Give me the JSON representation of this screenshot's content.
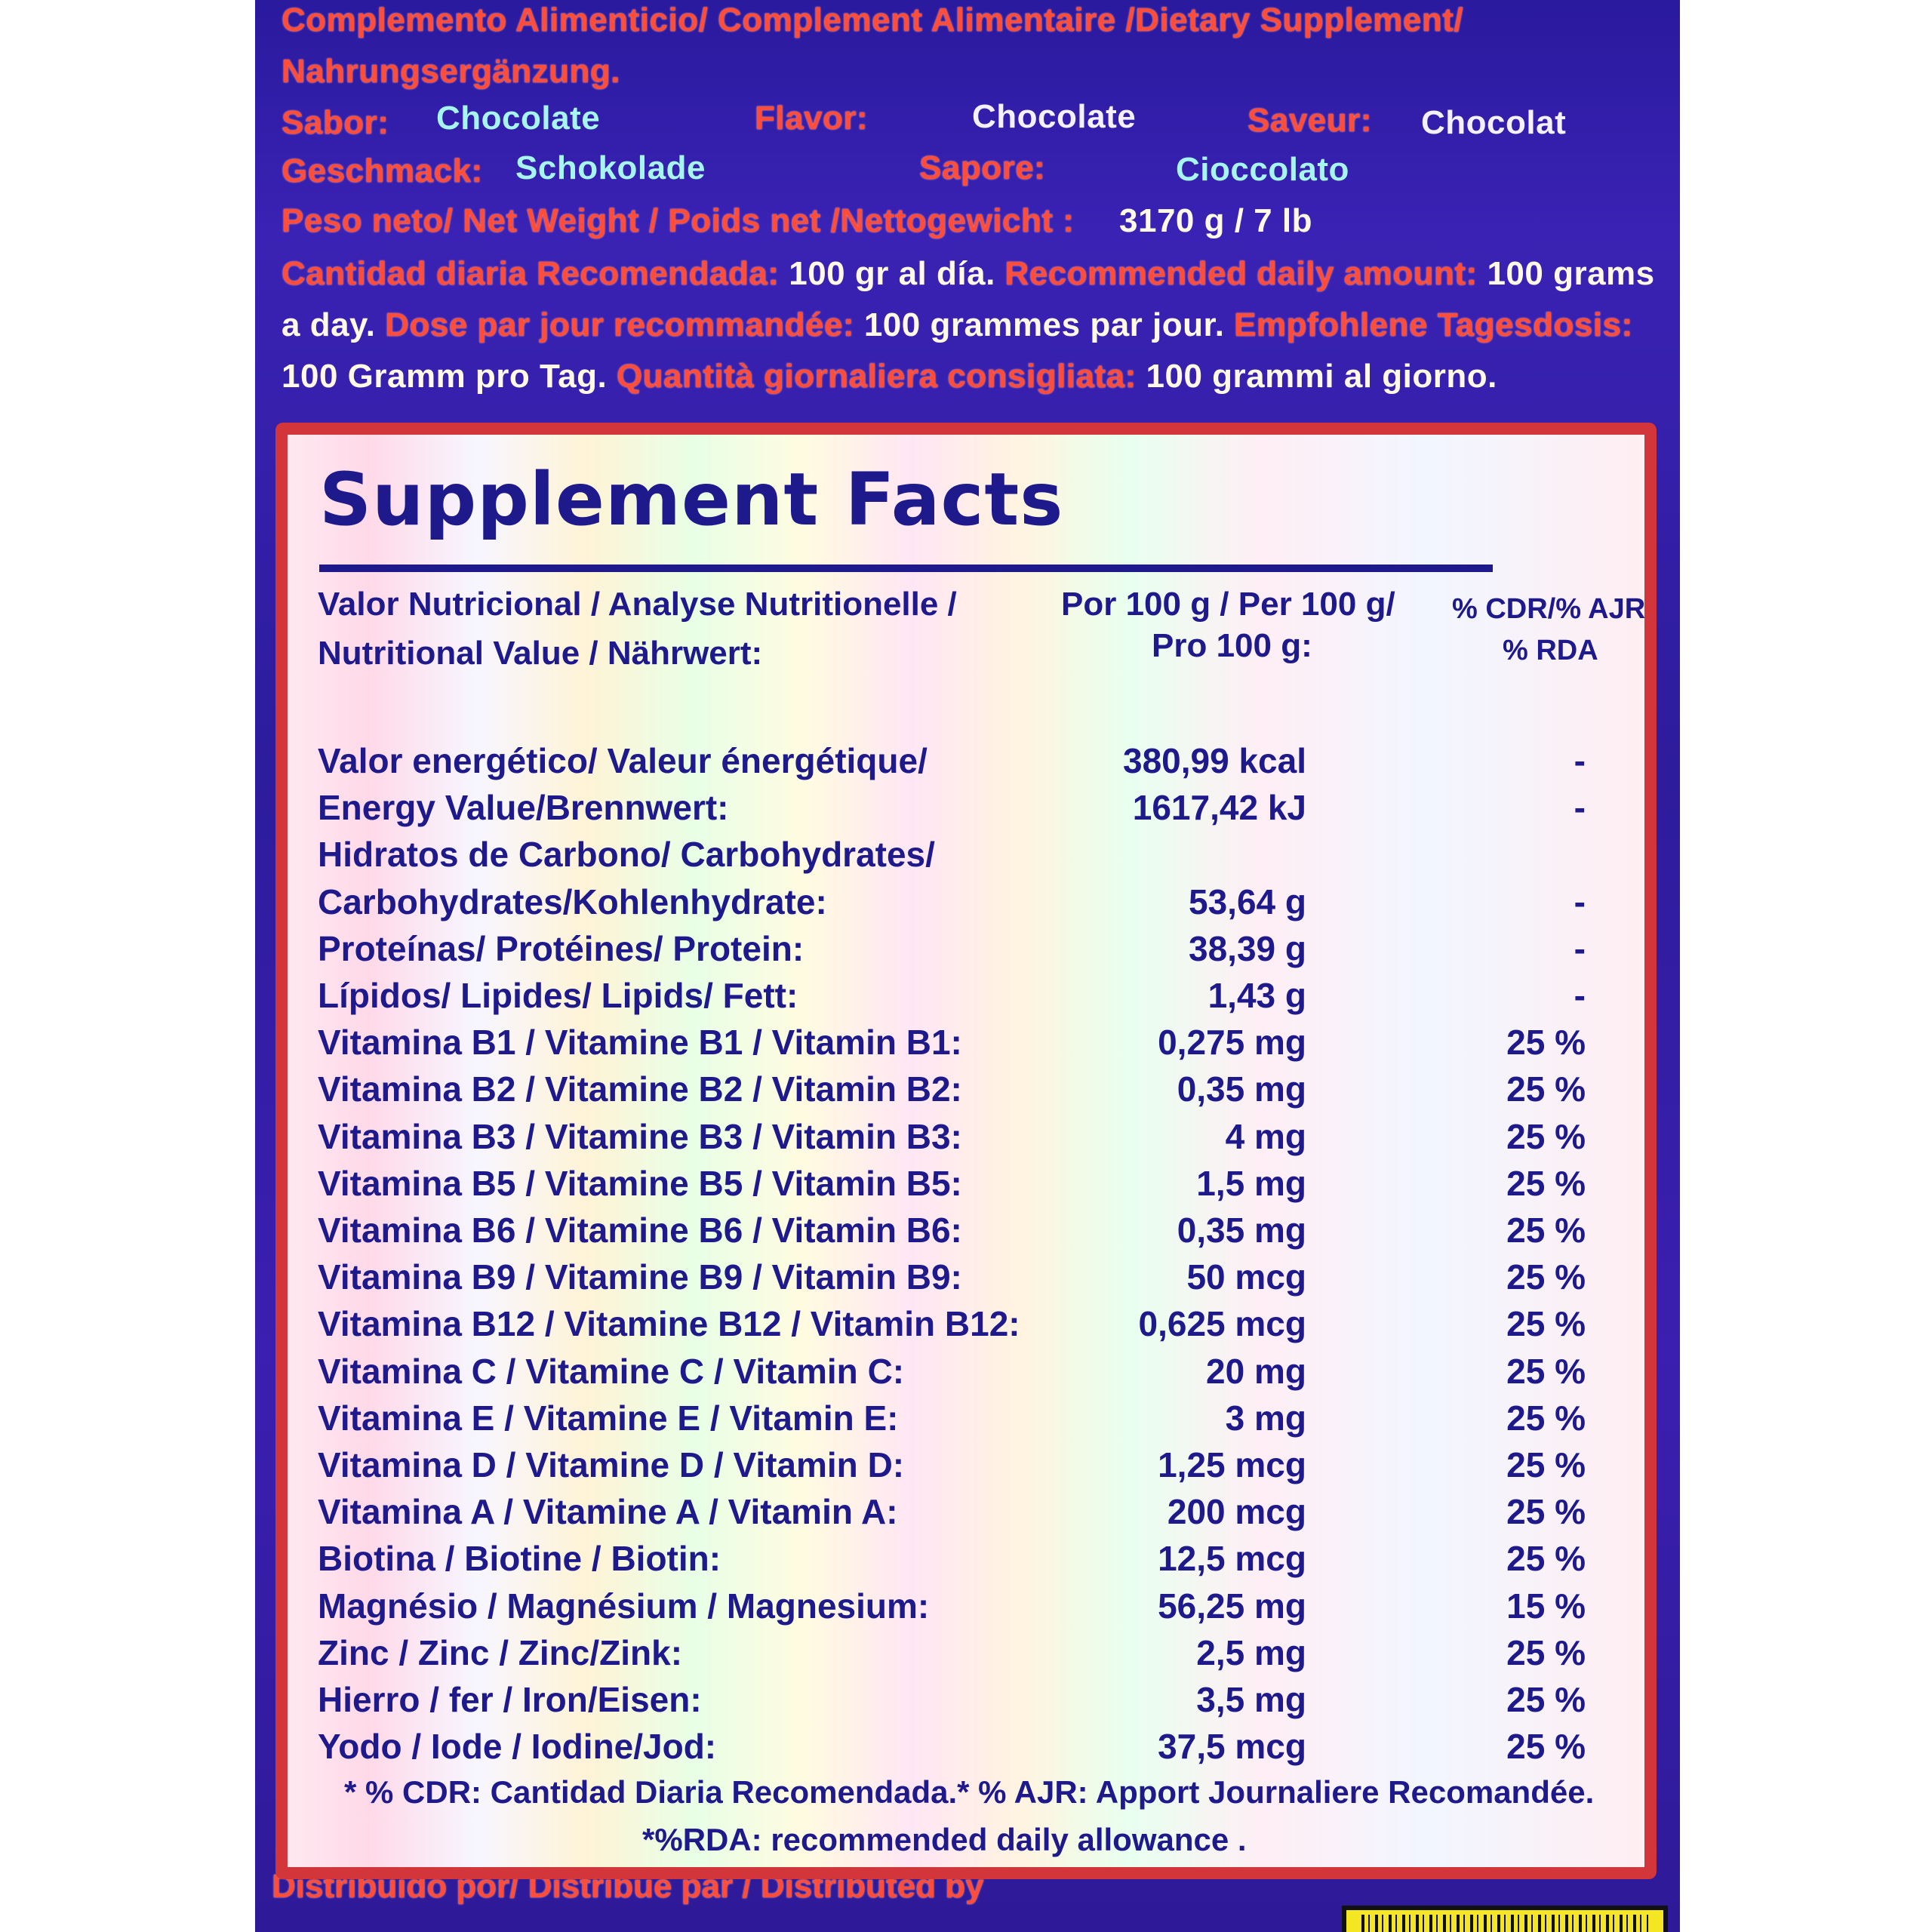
{
  "header": {
    "line1": "Complemento Alimenticio/ Complement  Alimentaire /Dietary Supplement/",
    "line2": "Nahrungsergänzung.",
    "flavors": {
      "sabor_label": "Sabor:",
      "sabor_value": "Chocolate",
      "flavor_label": "Flavor:",
      "flavor_value": "Chocolate",
      "saveur_label": "Saveur:",
      "saveur_value": "Chocolat",
      "geschmack_label": "Geschmack:",
      "geschmack_value": "Schokolade",
      "sapore_label": "Sapore:",
      "sapore_value": "Cioccolato"
    },
    "net_weight_label": "Peso neto/  Net Weight / Poids net /Nettogewicht :",
    "net_weight_value": "3170 g / 7 lb",
    "daily": {
      "es_label": "Cantidad diaria Recomendada:",
      "es_value": "100 gr al día.",
      "en_label": "Recommended daily amount:",
      "en_value_a": "100 grams",
      "en_value_b": "a day.",
      "fr_label": "Dose par jour recommandée:",
      "fr_value": "100 grammes par jour.",
      "de_label": "Empfohlene Tagesdosis:",
      "de_value": "100 Gramm pro Tag.",
      "it_label": "Quantità giornaliera consigliata:",
      "it_value": "100 grammi al giorno."
    }
  },
  "facts": {
    "title": "Supplement Facts",
    "col_label_1": "Valor Nutricional / Analyse Nutritionelle /",
    "col_label_2": "Nutritional Value / Nährwert:",
    "col_amount_1": "Por 100 g / Per 100 g/",
    "col_amount_2": "Pro 100 g:",
    "col_pct_1": "% CDR/% AJR",
    "col_pct_2": "% RDA",
    "rows": [
      {
        "label": "Valor energético/ Valeur énergétique/",
        "amount": "380,99 kcal",
        "pct": "-"
      },
      {
        "label": "Energy Value/Brennwert:",
        "amount": "1617,42 kJ",
        "pct": "-"
      },
      {
        "label": "Hidratos de Carbono/ Carbohydrates/",
        "amount": "",
        "pct": ""
      },
      {
        "label": "Carbohydrates/Kohlenhydrate:",
        "amount": "53,64 g",
        "pct": "-"
      },
      {
        "label": "Proteínas/ Protéines/ Protein:",
        "amount": "38,39 g",
        "pct": "-"
      },
      {
        "label": "Lípidos/ Lipides/ Lipids/ Fett:",
        "amount": "1,43 g",
        "pct": "-"
      },
      {
        "label": "Vitamina B1 / Vitamine B1 / Vitamin B1:",
        "amount": "0,275 mg",
        "pct": "25 %"
      },
      {
        "label": "Vitamina B2 / Vitamine B2 / Vitamin B2:",
        "amount": "0,35 mg",
        "pct": "25 %"
      },
      {
        "label": "Vitamina B3 / Vitamine B3 / Vitamin B3:",
        "amount": "4 mg",
        "pct": "25 %"
      },
      {
        "label": "Vitamina B5 / Vitamine B5 / Vitamin B5:",
        "amount": "1,5 mg",
        "pct": "25 %"
      },
      {
        "label": "Vitamina B6 / Vitamine B6 / Vitamin B6:",
        "amount": "0,35 mg",
        "pct": "25 %"
      },
      {
        "label": "Vitamina B9 / Vitamine B9 / Vitamin B9:",
        "amount": "50 mcg",
        "pct": "25 %"
      },
      {
        "label": "Vitamina B12 / Vitamine B12 / Vitamin B12:",
        "amount": "0,625 mcg",
        "pct": "25 %"
      },
      {
        "label": "Vitamina C / Vitamine C / Vitamin C:",
        "amount": "20 mg",
        "pct": "25 %"
      },
      {
        "label": "Vitamina E / Vitamine E / Vitamin E:",
        "amount": "3 mg",
        "pct": "25 %"
      },
      {
        "label": "Vitamina D / Vitamine D / Vitamin D:",
        "amount": "1,25 mcg",
        "pct": "25 %"
      },
      {
        "label": "Vitamina A / Vitamine A / Vitamin A:",
        "amount": "200 mcg",
        "pct": "25 %"
      },
      {
        "label": "Biotina / Biotine / Biotin:",
        "amount": "12,5 mcg",
        "pct": "25 %"
      },
      {
        "label": "Magnésio / Magnésium / Magnesium:",
        "amount": "56,25 mg",
        "pct": "15 %"
      },
      {
        "label": "Zinc / Zinc / Zinc/Zink:",
        "amount": "2,5 mg",
        "pct": "25 %"
      },
      {
        "label": "Hierro / fer / Iron/Eisen:",
        "amount": "3,5 mg",
        "pct": "25 %"
      },
      {
        "label": "Yodo / Iode / Iodine/Jod:",
        "amount": "37,5 mcg",
        "pct": "25 %"
      }
    ],
    "footnote_1": "* % CDR: Cantidad Diaria Recomendada.* % AJR: Apport Journaliere Recomandée.",
    "footnote_2": "*%RDA: recommended daily allowance ."
  },
  "bottom": {
    "distributed_label": "Distribuido por/ Distribué par / Distributed by"
  }
}
